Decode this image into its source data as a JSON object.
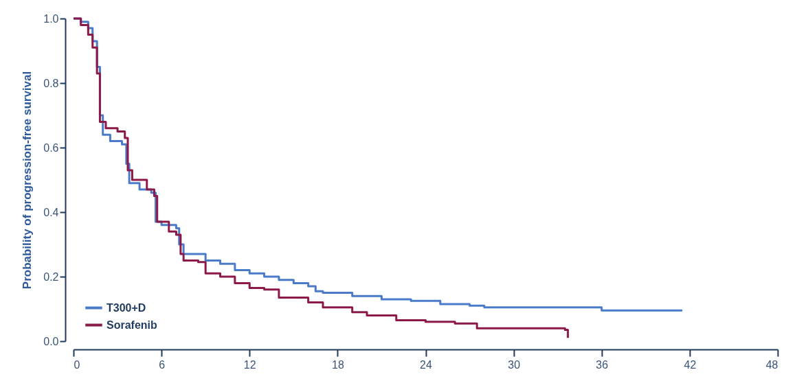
{
  "chart_data": {
    "type": "step",
    "ylabel": "Probability of progression-free survival",
    "xlim": [
      0,
      48
    ],
    "xticks": [
      0,
      6,
      12,
      18,
      24,
      30,
      36,
      42,
      48
    ],
    "ylim": [
      0,
      1
    ],
    "yticks": [
      {
        "value": 0,
        "label": "0.0"
      },
      {
        "value": 0.2,
        "label": "0.2"
      },
      {
        "value": 0.4,
        "label": "0.4"
      },
      {
        "value": 0.6,
        "label": "0.6"
      },
      {
        "value": 0.8,
        "label": "0.8"
      },
      {
        "value": 1,
        "label": "1.0"
      }
    ],
    "grid": false,
    "legend": "bottom left",
    "line_style": "solid",
    "series": [
      {
        "name": "T300+D",
        "color": "#4a7bc8",
        "x": [
          0,
          0.5,
          1,
          1.3,
          1.6,
          1.8,
          2,
          2.5,
          3.3,
          3.6,
          3.8,
          4.5,
          5.3,
          5.6,
          6,
          7,
          7.2,
          7.5,
          9,
          10,
          11,
          12,
          13,
          14,
          15,
          16,
          16.5,
          17,
          19,
          21,
          23,
          25,
          27,
          28,
          36,
          41.5
        ],
        "values": [
          1,
          0.99,
          0.97,
          0.93,
          0.85,
          0.7,
          0.64,
          0.62,
          0.61,
          0.55,
          0.49,
          0.47,
          0.46,
          0.37,
          0.36,
          0.35,
          0.3,
          0.27,
          0.25,
          0.24,
          0.22,
          0.21,
          0.2,
          0.19,
          0.18,
          0.17,
          0.155,
          0.15,
          0.14,
          0.13,
          0.125,
          0.115,
          0.11,
          0.105,
          0.095,
          0.095
        ]
      },
      {
        "name": "Sorafenib",
        "color": "#8b1a4a",
        "x": [
          0,
          0.5,
          1,
          1.3,
          1.6,
          1.8,
          2.2,
          3,
          3.5,
          3.7,
          4,
          5,
          5.5,
          5.7,
          6.5,
          7,
          7.3,
          7.5,
          8.5,
          9,
          10,
          11,
          12,
          13,
          14,
          16,
          17,
          19,
          20,
          22,
          24,
          26,
          27.5,
          30,
          33.5,
          33.7
        ],
        "values": [
          1,
          0.98,
          0.95,
          0.91,
          0.83,
          0.68,
          0.66,
          0.65,
          0.63,
          0.53,
          0.5,
          0.47,
          0.45,
          0.37,
          0.34,
          0.33,
          0.27,
          0.25,
          0.245,
          0.21,
          0.2,
          0.18,
          0.165,
          0.16,
          0.135,
          0.12,
          0.105,
          0.09,
          0.08,
          0.065,
          0.06,
          0.055,
          0.04,
          0.04,
          0.035,
          0.01
        ]
      }
    ]
  }
}
